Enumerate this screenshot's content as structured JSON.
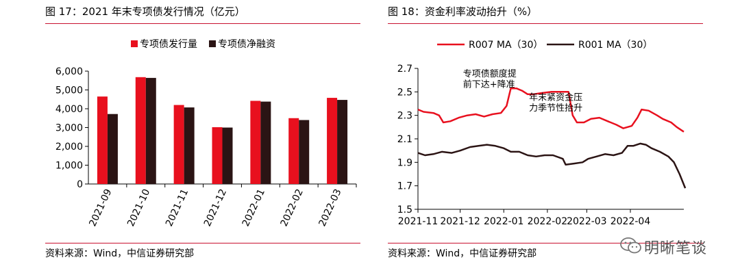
{
  "left": {
    "title": "图 17：2021 年末专项债发行情况（亿元）",
    "source": "资料来源：Wind，中信证券研究部"
  },
  "right": {
    "title": "图 18：资金利率波动抬升（%）",
    "source": "资料来源：Wind，中信证券研究部"
  },
  "watermark": {
    "text": "明晰笔谈",
    "icon": "wechat-icon"
  },
  "chart_data": [
    {
      "type": "bar",
      "categories": [
        "2021-09",
        "2021-10",
        "2021-11",
        "2021-12",
        "2022-01",
        "2022-02",
        "2022-03"
      ],
      "series": [
        {
          "name": "专项债发行量",
          "color": "#e8101e",
          "values": [
            4650,
            5680,
            4200,
            3020,
            4420,
            3500,
            4580
          ]
        },
        {
          "name": "专项债净融资",
          "color": "#2b1414",
          "values": [
            3720,
            5640,
            4070,
            3000,
            4380,
            3400,
            4470
          ]
        }
      ],
      "yticks": [
        "0",
        "1,000",
        "2,000",
        "3,000",
        "4,000",
        "5,000",
        "6,000"
      ],
      "ylim": [
        0,
        6000
      ],
      "legend": "top-center",
      "grid": false
    },
    {
      "type": "line",
      "x_ticks": [
        "2021-11",
        "2021-12",
        "2022-01",
        "2022-02",
        "2022-03",
        "2022-04"
      ],
      "x_range": [
        "2021-11-01",
        "2022-05-01"
      ],
      "ylim": [
        1.5,
        2.7
      ],
      "yticks": [
        "1.5",
        "1.7",
        "1.9",
        "2.1",
        "2.3",
        "2.5",
        "2.7"
      ],
      "legend": "top",
      "grid": false,
      "series": [
        {
          "name": "R007 MA（30）",
          "color": "#e8101e",
          "points": [
            [
              "2021-11-01",
              2.35
            ],
            [
              "2021-11-05",
              2.33
            ],
            [
              "2021-11-12",
              2.32
            ],
            [
              "2021-11-16",
              2.3
            ],
            [
              "2021-11-19",
              2.24
            ],
            [
              "2021-11-24",
              2.25
            ],
            [
              "2021-11-30",
              2.28
            ],
            [
              "2021-12-06",
              2.3
            ],
            [
              "2021-12-12",
              2.31
            ],
            [
              "2021-12-18",
              2.29
            ],
            [
              "2021-12-24",
              2.31
            ],
            [
              "2021-12-30",
              2.32
            ],
            [
              "2022-01-03",
              2.38
            ],
            [
              "2022-01-06",
              2.53
            ],
            [
              "2022-01-10",
              2.53
            ],
            [
              "2022-01-14",
              2.51
            ],
            [
              "2022-01-18",
              2.48
            ],
            [
              "2022-01-22",
              2.48
            ],
            [
              "2022-01-28",
              2.49
            ],
            [
              "2022-02-04",
              2.5
            ],
            [
              "2022-02-10",
              2.5
            ],
            [
              "2022-02-16",
              2.5
            ],
            [
              "2022-02-19",
              2.3
            ],
            [
              "2022-02-22",
              2.24
            ],
            [
              "2022-02-27",
              2.24
            ],
            [
              "2022-03-04",
              2.27
            ],
            [
              "2022-03-10",
              2.28
            ],
            [
              "2022-03-16",
              2.25
            ],
            [
              "2022-03-22",
              2.22
            ],
            [
              "2022-03-27",
              2.19
            ],
            [
              "2022-04-02",
              2.21
            ],
            [
              "2022-04-06",
              2.28
            ],
            [
              "2022-04-09",
              2.35
            ],
            [
              "2022-04-14",
              2.34
            ],
            [
              "2022-04-20",
              2.3
            ],
            [
              "2022-04-24",
              2.27
            ],
            [
              "2022-04-30",
              2.24
            ],
            [
              "2022-05-04",
              2.2
            ],
            [
              "2022-05-09",
              2.16
            ]
          ]
        },
        {
          "name": "R001 MA（30）",
          "color": "#2b1414",
          "points": [
            [
              "2021-11-01",
              1.98
            ],
            [
              "2021-11-06",
              1.96
            ],
            [
              "2021-11-12",
              1.97
            ],
            [
              "2021-11-18",
              1.99
            ],
            [
              "2021-11-25",
              1.98
            ],
            [
              "2021-12-01",
              2.0
            ],
            [
              "2021-12-08",
              2.03
            ],
            [
              "2021-12-14",
              2.04
            ],
            [
              "2021-12-20",
              2.05
            ],
            [
              "2021-12-26",
              2.04
            ],
            [
              "2022-01-01",
              2.02
            ],
            [
              "2022-01-06",
              1.99
            ],
            [
              "2022-01-12",
              1.99
            ],
            [
              "2022-01-18",
              1.96
            ],
            [
              "2022-01-24",
              1.95
            ],
            [
              "2022-01-30",
              1.96
            ],
            [
              "2022-02-05",
              1.96
            ],
            [
              "2022-02-12",
              1.93
            ],
            [
              "2022-02-14",
              1.88
            ],
            [
              "2022-02-20",
              1.89
            ],
            [
              "2022-02-26",
              1.9
            ],
            [
              "2022-03-02",
              1.93
            ],
            [
              "2022-03-08",
              1.95
            ],
            [
              "2022-03-14",
              1.97
            ],
            [
              "2022-03-20",
              1.96
            ],
            [
              "2022-03-26",
              1.98
            ],
            [
              "2022-03-30",
              2.04
            ],
            [
              "2022-04-03",
              2.04
            ],
            [
              "2022-04-08",
              2.06
            ],
            [
              "2022-04-12",
              2.05
            ],
            [
              "2022-04-16",
              2.02
            ],
            [
              "2022-04-22",
              1.99
            ],
            [
              "2022-04-28",
              1.95
            ],
            [
              "2022-05-02",
              1.9
            ],
            [
              "2022-05-06",
              1.8
            ],
            [
              "2022-05-10",
              1.68
            ]
          ]
        }
      ],
      "annotations": [
        {
          "text": "专项债额度提",
          "x": "2021-12-03",
          "y": 2.63
        },
        {
          "text": "前下达+降准",
          "x": "2021-12-03",
          "y": 2.54
        },
        {
          "text": "年末紧资金压",
          "x": "2022-01-19",
          "y": 2.43
        },
        {
          "text": "力季节性抬升",
          "x": "2022-01-19",
          "y": 2.34
        }
      ]
    }
  ]
}
